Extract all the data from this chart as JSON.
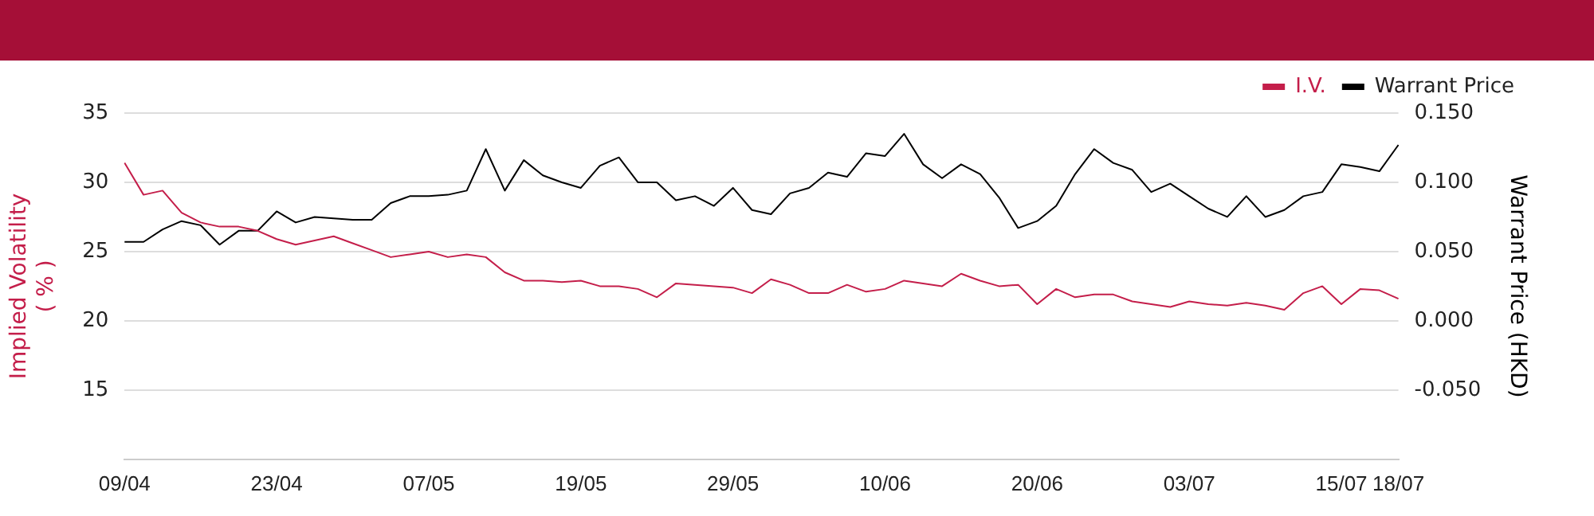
{
  "chart_data": {
    "type": "line",
    "categories": [
      "09/04",
      null,
      null,
      null,
      null,
      null,
      null,
      null,
      "23/04",
      null,
      null,
      null,
      null,
      null,
      null,
      null,
      "07/05",
      null,
      null,
      null,
      null,
      null,
      null,
      null,
      "19/05",
      null,
      null,
      null,
      null,
      null,
      null,
      null,
      "29/05",
      null,
      null,
      null,
      null,
      null,
      null,
      null,
      "10/06",
      null,
      null,
      null,
      null,
      null,
      null,
      null,
      "20/06",
      null,
      null,
      null,
      null,
      null,
      null,
      null,
      "03/07",
      null,
      null,
      null,
      null,
      null,
      null,
      null,
      "15/07",
      null,
      null,
      "18/07"
    ],
    "series": [
      {
        "name": "I.V.",
        "color": "#c41e4a",
        "values": [
          31.4,
          29.1,
          29.4,
          27.8,
          27.1,
          26.8,
          26.8,
          26.5,
          25.9,
          25.5,
          25.8,
          26.1,
          25.6,
          25.1,
          24.6,
          24.8,
          25.0,
          24.6,
          24.8,
          24.6,
          23.5,
          22.9,
          22.9,
          22.8,
          22.9,
          22.5,
          22.5,
          22.3,
          21.7,
          22.7,
          22.6,
          22.5,
          22.4,
          22.0,
          23.0,
          22.6,
          22.0,
          22.0,
          22.6,
          22.1,
          22.3,
          22.9,
          22.7,
          22.5,
          23.4,
          22.9,
          22.5,
          22.6,
          21.2,
          22.3,
          21.7,
          21.9,
          21.9,
          21.4,
          21.2,
          21.0,
          21.4,
          21.2,
          21.1,
          21.3,
          21.1,
          20.8,
          22.0,
          22.5,
          21.2,
          22.3,
          22.2,
          21.6
        ]
      },
      {
        "name": "Warrant Price",
        "color": "#000000",
        "axis": "y2",
        "values": [
          0.057,
          0.057,
          0.066,
          0.072,
          0.069,
          0.055,
          0.065,
          0.065,
          0.079,
          0.071,
          0.075,
          0.074,
          0.073,
          0.073,
          0.085,
          0.09,
          0.09,
          0.091,
          0.094,
          0.124,
          0.094,
          0.116,
          0.105,
          0.1,
          0.096,
          0.112,
          0.118,
          0.1,
          0.1,
          0.087,
          0.09,
          0.083,
          0.096,
          0.08,
          0.077,
          0.092,
          0.096,
          0.107,
          0.104,
          0.121,
          0.119,
          0.135,
          0.113,
          0.103,
          0.113,
          0.106,
          0.089,
          0.067,
          0.072,
          0.083,
          0.106,
          0.124,
          0.114,
          0.109,
          0.093,
          0.099,
          0.09,
          0.081,
          0.075,
          0.09,
          0.075,
          0.08,
          0.09,
          0.093,
          0.113,
          0.111,
          0.108,
          0.127
        ]
      }
    ],
    "ylabel": "Implied Volatility\n( % )",
    "y2label": "Warrant Price (HKD)",
    "ylim": [
      10,
      35
    ],
    "yticks": [
      15,
      20,
      25,
      30,
      35
    ],
    "y2lim": [
      -0.1,
      0.15
    ],
    "y2ticks": [
      {
        "value": -0.05,
        "label": "-0.050"
      },
      {
        "value": 0,
        "label": "0.000"
      },
      {
        "value": 0.05,
        "label": "0.050"
      },
      {
        "value": 0.1,
        "label": "0.100"
      },
      {
        "value": 0.15,
        "label": "0.150"
      }
    ],
    "grid": "y",
    "legend": "top right",
    "marker": "none",
    "line_style": "solid"
  }
}
